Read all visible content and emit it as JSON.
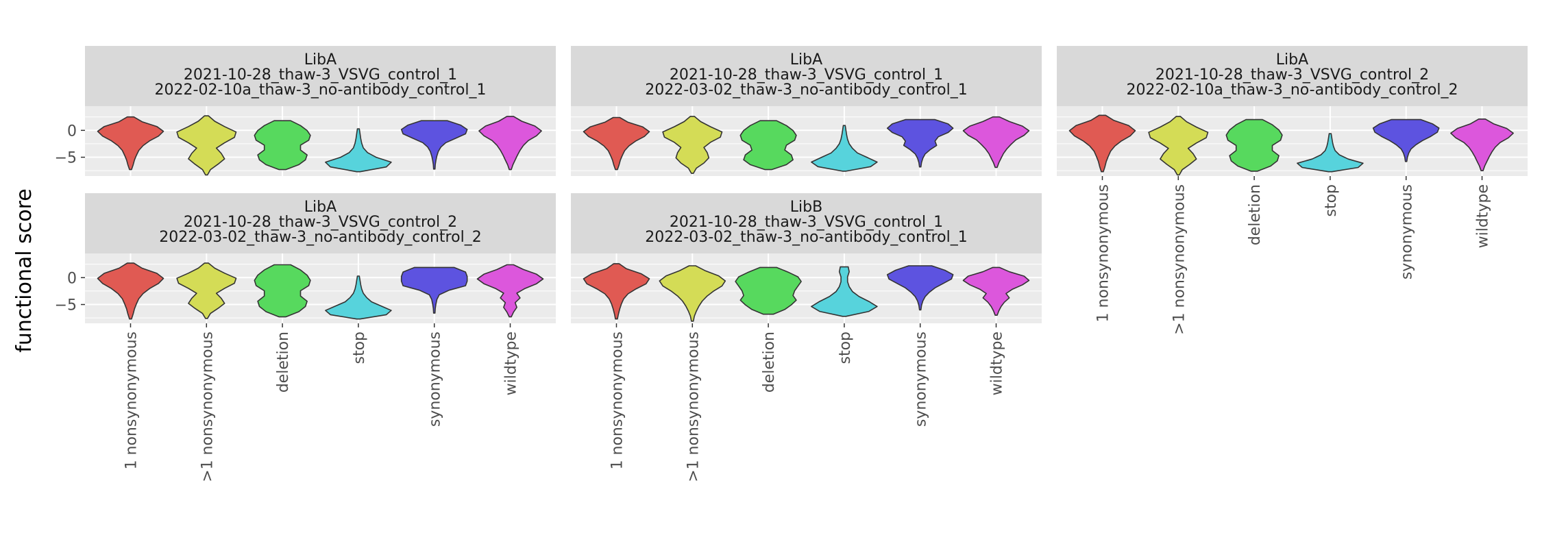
{
  "chart_data": {
    "type": "violin",
    "ylabel": "functional score",
    "xlabel": "",
    "ylim": [
      -8.5,
      4.5
    ],
    "yticks": [
      0,
      -5
    ],
    "ytick_labels": [
      "0",
      "−5"
    ],
    "categories": [
      "1 nonsynonymous",
      ">1 nonsynonymous",
      "deletion",
      "stop",
      "synonymous",
      "wildtype"
    ],
    "colors": [
      "#e05a53",
      "#d4dc56",
      "#57d95e",
      "#57d3dc",
      "#5d53e0",
      "#dc57dc"
    ],
    "facets": [
      {
        "strip": [
          "LibA",
          "2021-10-28_thaw-3_VSVG_control_1",
          "2022-02-10a_thaw-3_no-antibody_control_1"
        ],
        "violins": [
          {
            "category": "1 nonsynonymous",
            "min": -7.3,
            "max": 2.5,
            "profile": [
              0.03,
              0.08,
              0.12,
              0.18,
              0.25,
              0.38,
              0.58,
              0.85,
              1.0,
              0.8,
              0.35,
              0.1
            ]
          },
          {
            "category": ">1 nonsynonymous",
            "min": -8.3,
            "max": 2.7,
            "profile": [
              0.03,
              0.12,
              0.35,
              0.55,
              0.45,
              0.3,
              0.55,
              0.85,
              0.9,
              0.55,
              0.25,
              0.06
            ]
          },
          {
            "category": "deletion",
            "min": -7.3,
            "max": 1.8,
            "profile": [
              0.1,
              0.5,
              0.7,
              0.75,
              0.55,
              0.55,
              0.8,
              0.85,
              0.75,
              0.55,
              0.25
            ]
          },
          {
            "category": "stop",
            "min": -7.7,
            "max": 0.3,
            "profile": [
              0.05,
              0.85,
              1.0,
              0.55,
              0.28,
              0.15,
              0.1,
              0.07,
              0.05,
              0.03
            ]
          },
          {
            "category": "synonymous",
            "min": -7.2,
            "max": 1.8,
            "profile": [
              0.02,
              0.03,
              0.05,
              0.08,
              0.12,
              0.2,
              0.35,
              0.65,
              0.95,
              1.0,
              0.8,
              0.4
            ]
          },
          {
            "category": "wildtype",
            "min": -7.3,
            "max": 2.6,
            "profile": [
              0.03,
              0.08,
              0.15,
              0.22,
              0.3,
              0.4,
              0.55,
              0.8,
              0.95,
              0.75,
              0.35,
              0.1
            ]
          }
        ]
      },
      {
        "strip": [
          "LibA",
          "2021-10-28_thaw-3_VSVG_control_1",
          "2022-03-02_thaw-3_no-antibody_control_1"
        ],
        "violins": [
          {
            "category": "1 nonsynonymous",
            "min": -7.3,
            "max": 2.4,
            "profile": [
              0.03,
              0.08,
              0.12,
              0.18,
              0.25,
              0.38,
              0.58,
              0.85,
              1.0,
              0.8,
              0.35,
              0.1
            ]
          },
          {
            "category": ">1 nonsynonymous",
            "min": -8.0,
            "max": 2.6,
            "profile": [
              0.03,
              0.12,
              0.35,
              0.5,
              0.45,
              0.35,
              0.55,
              0.85,
              0.9,
              0.55,
              0.25,
              0.06
            ]
          },
          {
            "category": "deletion",
            "min": -7.3,
            "max": 1.8,
            "profile": [
              0.1,
              0.55,
              0.75,
              0.7,
              0.5,
              0.55,
              0.8,
              0.85,
              0.75,
              0.55,
              0.25
            ]
          },
          {
            "category": "stop",
            "min": -7.6,
            "max": 0.9,
            "profile": [
              0.05,
              0.8,
              1.0,
              0.7,
              0.4,
              0.25,
              0.15,
              0.1,
              0.07,
              0.05,
              0.03
            ]
          },
          {
            "category": "synonymous",
            "min": -6.8,
            "max": 2.0,
            "profile": [
              0.02,
              0.04,
              0.08,
              0.15,
              0.3,
              0.5,
              0.45,
              0.55,
              0.85,
              1.0,
              0.85,
              0.45
            ]
          },
          {
            "category": "wildtype",
            "min": -6.9,
            "max": 2.5,
            "profile": [
              0.03,
              0.08,
              0.15,
              0.22,
              0.32,
              0.45,
              0.6,
              0.85,
              1.0,
              0.8,
              0.4,
              0.1
            ]
          }
        ]
      },
      {
        "strip": [
          "LibA",
          "2021-10-28_thaw-3_VSVG_control_2",
          "2022-02-10a_thaw-3_no-antibody_control_2"
        ],
        "violins": [
          {
            "category": "1 nonsynonymous",
            "min": -7.7,
            "max": 2.8,
            "profile": [
              0.03,
              0.08,
              0.12,
              0.18,
              0.25,
              0.38,
              0.58,
              0.85,
              1.0,
              0.8,
              0.35,
              0.1
            ]
          },
          {
            "category": ">1 nonsynonymous",
            "min": -8.3,
            "max": 2.6,
            "profile": [
              0.03,
              0.12,
              0.35,
              0.55,
              0.45,
              0.3,
              0.55,
              0.85,
              0.9,
              0.55,
              0.25,
              0.06
            ]
          },
          {
            "category": "deletion",
            "min": -7.6,
            "max": 2.0,
            "profile": [
              0.1,
              0.5,
              0.7,
              0.75,
              0.55,
              0.55,
              0.8,
              0.85,
              0.75,
              0.55,
              0.25
            ]
          },
          {
            "category": "stop",
            "min": -7.7,
            "max": -0.6,
            "profile": [
              0.05,
              0.85,
              1.0,
              0.55,
              0.28,
              0.15,
              0.1,
              0.07,
              0.05,
              0.03
            ]
          },
          {
            "category": "synonymous",
            "min": -5.8,
            "max": 2.0,
            "profile": [
              0.02,
              0.04,
              0.08,
              0.15,
              0.3,
              0.5,
              0.75,
              0.95,
              1.0,
              0.8,
              0.45
            ]
          },
          {
            "category": "wildtype",
            "min": -7.5,
            "max": 2.1,
            "profile": [
              0.03,
              0.08,
              0.15,
              0.22,
              0.3,
              0.4,
              0.55,
              0.8,
              0.95,
              0.75,
              0.35,
              0.1
            ]
          }
        ]
      },
      {
        "strip": [
          "LibA",
          "2021-10-28_thaw-3_VSVG_control_2",
          "2022-03-02_thaw-3_no-antibody_control_2"
        ],
        "violins": [
          {
            "category": "1 nonsynonymous",
            "min": -7.7,
            "max": 2.7,
            "profile": [
              0.03,
              0.08,
              0.12,
              0.18,
              0.25,
              0.38,
              0.58,
              0.85,
              1.0,
              0.8,
              0.35,
              0.1
            ]
          },
          {
            "category": ">1 nonsynonymous",
            "min": -7.6,
            "max": 2.7,
            "profile": [
              0.03,
              0.12,
              0.35,
              0.55,
              0.45,
              0.3,
              0.55,
              0.85,
              0.9,
              0.55,
              0.25,
              0.06
            ]
          },
          {
            "category": "deletion",
            "min": -7.3,
            "max": 2.4,
            "profile": [
              0.1,
              0.5,
              0.7,
              0.75,
              0.55,
              0.55,
              0.8,
              0.85,
              0.75,
              0.55,
              0.25
            ]
          },
          {
            "category": "stop",
            "min": -7.7,
            "max": 0.3,
            "profile": [
              0.05,
              0.85,
              1.0,
              0.7,
              0.4,
              0.25,
              0.15,
              0.1,
              0.07,
              0.05,
              0.03
            ]
          },
          {
            "category": "synonymous",
            "min": -6.6,
            "max": 1.9,
            "profile": [
              0.02,
              0.03,
              0.05,
              0.08,
              0.15,
              0.45,
              0.95,
              1.0,
              1.0,
              0.95,
              0.6
            ]
          },
          {
            "category": "wildtype",
            "min": -7.3,
            "max": 2.4,
            "profile": [
              0.03,
              0.1,
              0.2,
              0.15,
              0.3,
              0.2,
              0.45,
              0.8,
              1.0,
              0.8,
              0.4,
              0.1
            ]
          }
        ]
      },
      {
        "strip": [
          "LibB",
          "2021-10-28_thaw-3_VSVG_control_1",
          "2022-03-02_thaw-3_no-antibody_control_1"
        ],
        "violins": [
          {
            "category": "1 nonsynonymous",
            "min": -7.7,
            "max": 2.6,
            "profile": [
              0.03,
              0.06,
              0.1,
              0.15,
              0.22,
              0.35,
              0.6,
              0.9,
              1.0,
              0.75,
              0.3,
              0.08
            ]
          },
          {
            "category": ">1 nonsynonymous",
            "min": -8.1,
            "max": 2.2,
            "profile": [
              0.03,
              0.06,
              0.12,
              0.2,
              0.3,
              0.45,
              0.65,
              0.9,
              1.0,
              0.8,
              0.4,
              0.1
            ]
          },
          {
            "category": "deletion",
            "min": -6.8,
            "max": 1.9,
            "profile": [
              0.15,
              0.5,
              0.7,
              0.85,
              0.75,
              0.8,
              0.9,
              1.0,
              0.9,
              0.6,
              0.25
            ]
          },
          {
            "category": "stop",
            "min": -7.2,
            "max": 2.0,
            "profile": [
              0.05,
              0.75,
              1.0,
              0.75,
              0.45,
              0.25,
              0.15,
              0.1,
              0.1,
              0.15,
              0.12
            ]
          },
          {
            "category": "synonymous",
            "min": -6.0,
            "max": 2.2,
            "profile": [
              0.02,
              0.04,
              0.08,
              0.15,
              0.28,
              0.45,
              0.7,
              0.95,
              1.0,
              0.75,
              0.35
            ]
          },
          {
            "category": "wildtype",
            "min": -7.0,
            "max": 1.9,
            "profile": [
              0.03,
              0.08,
              0.15,
              0.25,
              0.4,
              0.3,
              0.5,
              0.8,
              1.0,
              0.85,
              0.4,
              0.1
            ]
          }
        ]
      }
    ]
  }
}
